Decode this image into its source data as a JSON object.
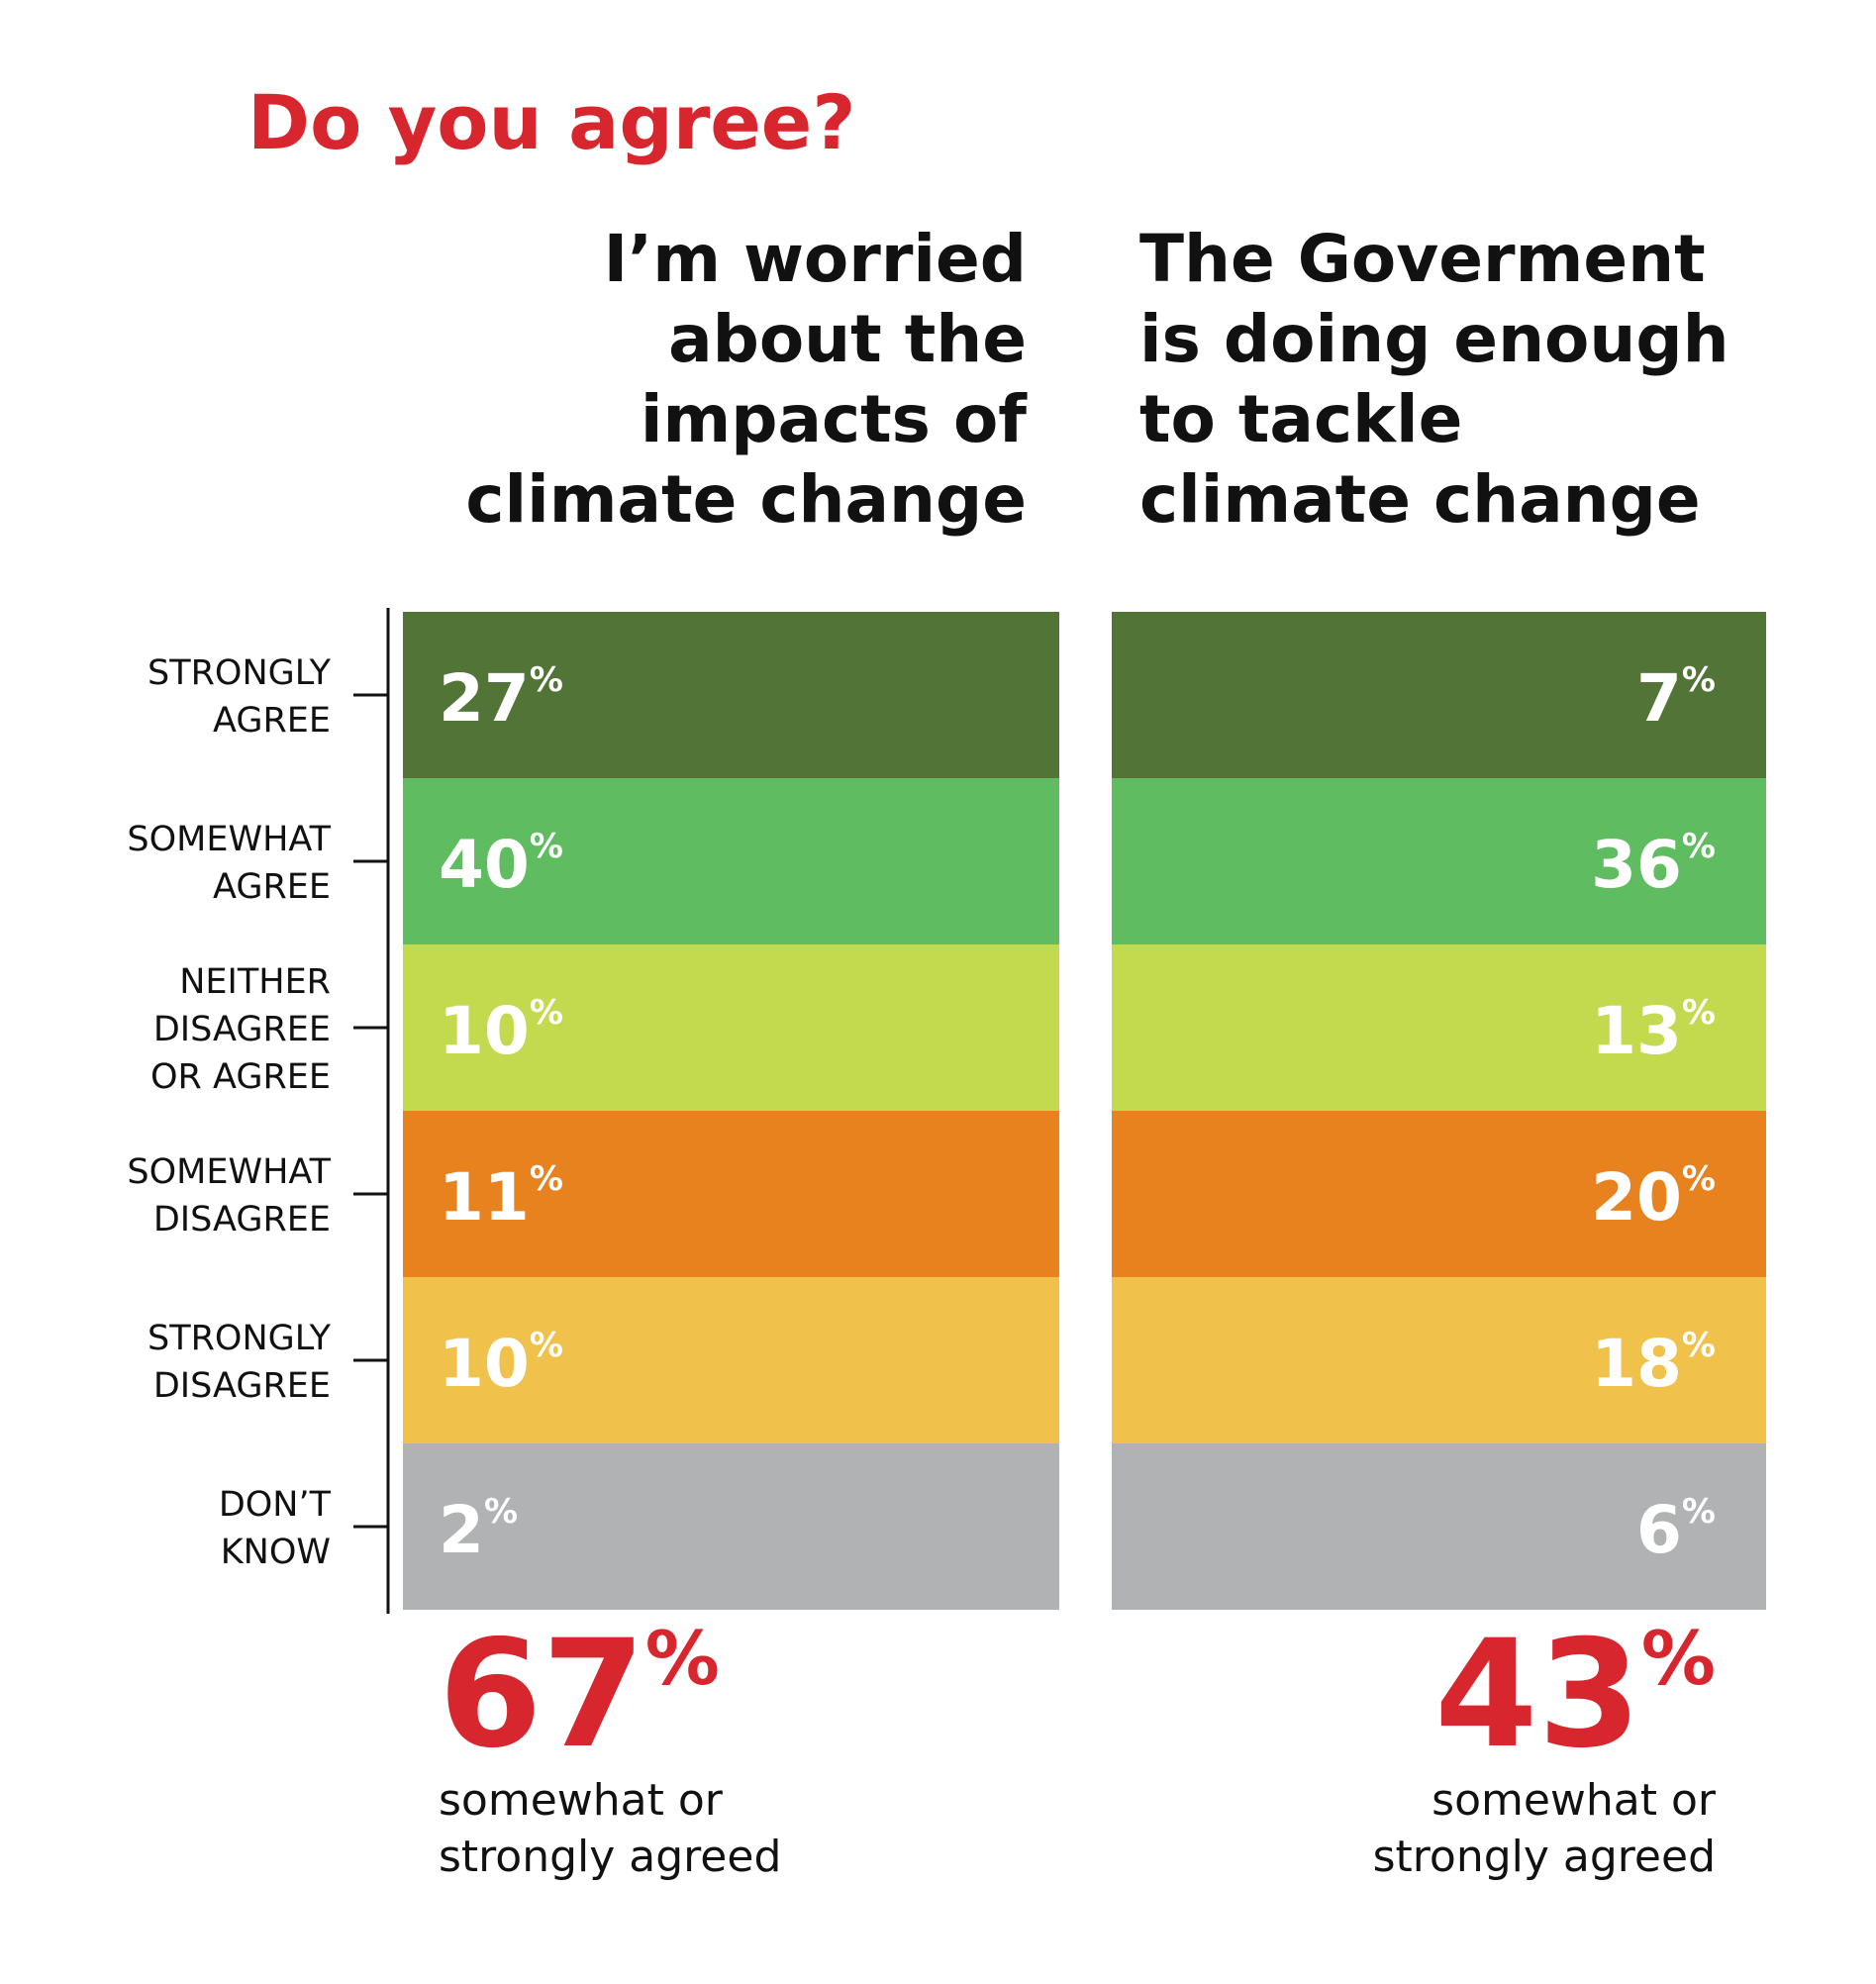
{
  "title": "Do you agree?",
  "unit": "%",
  "rows": [
    {
      "label": [
        "STRONGLY",
        "AGREE"
      ],
      "color": "#527436"
    },
    {
      "label": [
        "SOMEWHAT",
        "AGREE"
      ],
      "color": "#5fbc60"
    },
    {
      "label": [
        "NEITHER",
        "DISAGREE",
        "OR AGREE"
      ],
      "color": "#c3da4f"
    },
    {
      "label": [
        "SOMEWHAT",
        "DISAGREE"
      ],
      "color": "#e8821f"
    },
    {
      "label": [
        "STRONGLY",
        "DISAGREE"
      ],
      "color": "#f0c14b"
    },
    {
      "label": [
        "DON’T",
        "KNOW"
      ],
      "color": "#b1b2b4"
    }
  ],
  "columns": [
    {
      "heading": [
        "I’m worried",
        "about the",
        "impacts of",
        "climate change"
      ],
      "values": [
        27,
        40,
        10,
        11,
        10,
        2
      ],
      "summary": {
        "value": 67,
        "text": [
          "somewhat or",
          "strongly agreed"
        ]
      }
    },
    {
      "heading": [
        "The Goverment",
        "is doing enough",
        "to tackle",
        "climate change"
      ],
      "values": [
        7,
        36,
        13,
        20,
        18,
        6
      ],
      "summary": {
        "value": 43,
        "text": [
          "somewhat or",
          "strongly agreed"
        ]
      }
    }
  ]
}
